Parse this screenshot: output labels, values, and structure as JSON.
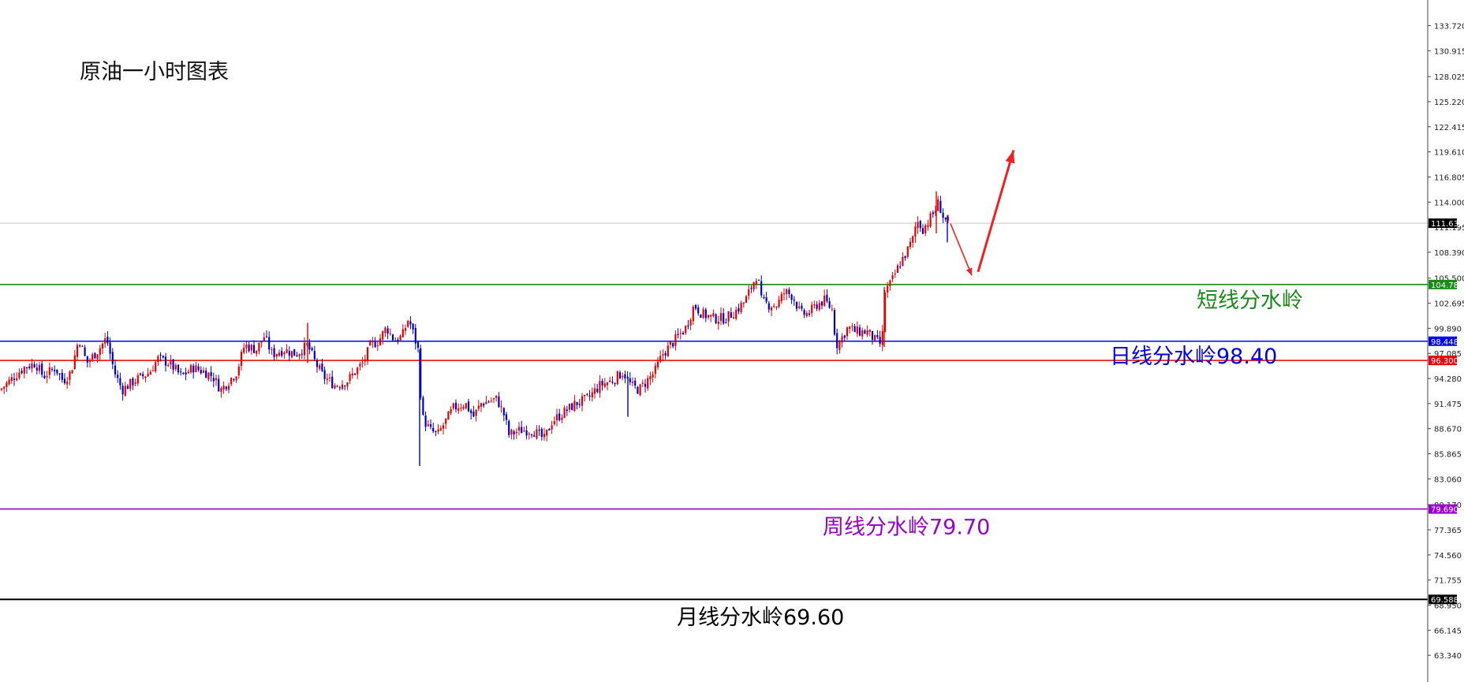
{
  "chart_data": {
    "type": "candlestick",
    "title": "原油一小时图表",
    "y_axis": {
      "min": 61.5,
      "max": 135.0,
      "position": "right",
      "ticks": [
        "133.720",
        "130.915",
        "128.025",
        "125.220",
        "122.415",
        "119.610",
        "116.805",
        "114.000",
        "111.195",
        "108.390",
        "105.500",
        "102.695",
        "99.890",
        "97.085",
        "94.280",
        "91.475",
        "88.670",
        "85.865",
        "83.060",
        "80.170",
        "77.365",
        "74.560",
        "71.755",
        "68.950",
        "66.145",
        "63.340"
      ],
      "current_price_label": "111.636",
      "current_price": 111.636
    },
    "levels": [
      {
        "name": "短线分水岭",
        "value": 104.786,
        "axis_label": "104.786",
        "annotation": "短线分水岭",
        "color": "#1a8a1a"
      },
      {
        "name": "日线分水岭",
        "value": 98.448,
        "axis_label": "98.448",
        "annotation": "日线分水岭98.40",
        "color": "#0000ee"
      },
      {
        "name": "red-level",
        "value": 96.3,
        "axis_label": "96.300",
        "annotation": "",
        "color": "#ee0000"
      },
      {
        "name": "周线分水岭",
        "value": 79.69,
        "axis_label": "79.690",
        "annotation": "周线分水岭79.70",
        "color": "#9900cc"
      },
      {
        "name": "月线分水岭",
        "value": 69.588,
        "axis_label": "69.588",
        "annotation": "月线分水岭69.60",
        "color": "#000000"
      }
    ],
    "close_path": [
      [
        0,
        93
      ],
      [
        30,
        95.5
      ],
      [
        45,
        96
      ],
      [
        55,
        94.5
      ],
      [
        70,
        95.5
      ],
      [
        80,
        94
      ],
      [
        90,
        95
      ],
      [
        100,
        98.8
      ],
      [
        110,
        96
      ],
      [
        125,
        97.5
      ],
      [
        135,
        98.8
      ],
      [
        145,
        95
      ],
      [
        155,
        93
      ],
      [
        170,
        94
      ],
      [
        190,
        95
      ],
      [
        200,
        96.5
      ],
      [
        215,
        96
      ],
      [
        230,
        94.5
      ],
      [
        245,
        95.5
      ],
      [
        260,
        95
      ],
      [
        270,
        94.5
      ],
      [
        280,
        93
      ],
      [
        300,
        95
      ],
      [
        310,
        98
      ],
      [
        325,
        97.5
      ],
      [
        335,
        99
      ],
      [
        345,
        97
      ],
      [
        360,
        97.5
      ],
      [
        375,
        97
      ],
      [
        390,
        98
      ],
      [
        400,
        96
      ],
      [
        410,
        94.5
      ],
      [
        425,
        93.5
      ],
      [
        440,
        94
      ],
      [
        450,
        95
      ],
      [
        460,
        96
      ],
      [
        470,
        98
      ],
      [
        480,
        98.5
      ],
      [
        490,
        100
      ],
      [
        500,
        98.5
      ],
      [
        510,
        99
      ],
      [
        518,
        101
      ],
      [
        525,
        99
      ],
      [
        530,
        97.5
      ],
      [
        535,
        90
      ],
      [
        545,
        88.5
      ],
      [
        555,
        88
      ],
      [
        565,
        89.5
      ],
      [
        575,
        91
      ],
      [
        590,
        91.5
      ],
      [
        600,
        90
      ],
      [
        610,
        91.5
      ],
      [
        630,
        92
      ],
      [
        640,
        90
      ],
      [
        645,
        88
      ],
      [
        660,
        88.5
      ],
      [
        675,
        88.5
      ],
      [
        690,
        87.5
      ],
      [
        700,
        89.5
      ],
      [
        715,
        90.5
      ],
      [
        730,
        91.5
      ],
      [
        745,
        92
      ],
      [
        760,
        93.5
      ],
      [
        775,
        94
      ],
      [
        790,
        95
      ],
      [
        800,
        93.5
      ],
      [
        810,
        93
      ],
      [
        820,
        94
      ],
      [
        830,
        95
      ],
      [
        840,
        97
      ],
      [
        855,
        98.5
      ],
      [
        870,
        100
      ],
      [
        880,
        102.5
      ],
      [
        890,
        101.5
      ],
      [
        905,
        101
      ],
      [
        920,
        101
      ],
      [
        935,
        102
      ],
      [
        945,
        103
      ],
      [
        955,
        105
      ],
      [
        960,
        106
      ],
      [
        965,
        103
      ],
      [
        975,
        102.5
      ],
      [
        985,
        102.5
      ],
      [
        995,
        104
      ],
      [
        1005,
        103.5
      ],
      [
        1015,
        101.5
      ],
      [
        1025,
        101.5
      ],
      [
        1035,
        102.5
      ],
      [
        1045,
        103
      ],
      [
        1055,
        102
      ],
      [
        1060,
        98
      ],
      [
        1065,
        98.5
      ],
      [
        1075,
        100
      ],
      [
        1085,
        99.5
      ],
      [
        1100,
        99.5
      ],
      [
        1110,
        98.5
      ],
      [
        1118,
        98
      ],
      [
        1122,
        104
      ],
      [
        1130,
        105
      ],
      [
        1140,
        107
      ],
      [
        1150,
        108.5
      ],
      [
        1158,
        110
      ],
      [
        1162,
        112
      ],
      [
        1170,
        111
      ],
      [
        1178,
        112
      ],
      [
        1185,
        113
      ],
      [
        1190,
        114
      ],
      [
        1195,
        112.5
      ],
      [
        1200,
        111.8
      ],
      [
        1205,
        111.6
      ]
    ],
    "forecast_arrows": [
      {
        "from": [
          1205,
          111.6
        ],
        "to": [
          1232,
          105.8
        ],
        "color": "#ee2222",
        "style": "thin"
      },
      {
        "from": [
          1240,
          106.2
        ],
        "to": [
          1285,
          119.8
        ],
        "color": "#ee2222",
        "style": "thick"
      }
    ]
  }
}
